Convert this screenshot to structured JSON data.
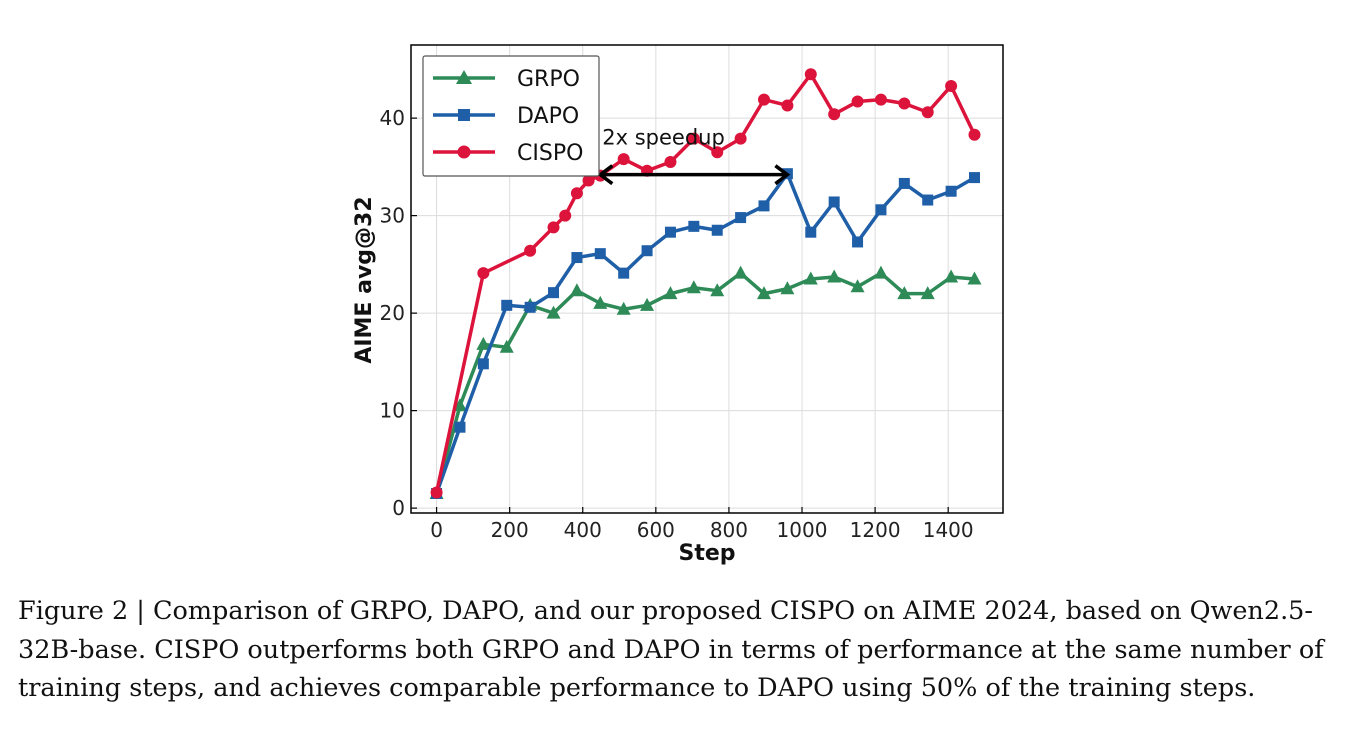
{
  "chart_data": {
    "type": "line",
    "xlabel": "Step",
    "ylabel": "AIME avg@32",
    "xlim": [
      -70,
      1550
    ],
    "ylim": [
      -0.5,
      47.5
    ],
    "xticks": [
      0,
      200,
      400,
      600,
      800,
      1000,
      1200,
      1400
    ],
    "yticks": [
      0,
      10,
      20,
      30,
      40
    ],
    "grid": true,
    "legend_position": "top-left",
    "series": [
      {
        "name": "GRPO",
        "color": "#2e8b57",
        "marker": "triangle",
        "x": [
          0,
          64,
          128,
          192,
          256,
          320,
          384,
          448,
          512,
          576,
          640,
          704,
          768,
          832,
          896,
          960,
          1024,
          1088,
          1152,
          1216,
          1280,
          1344,
          1408,
          1472
        ],
        "y": [
          1.5,
          10.5,
          16.8,
          16.5,
          20.8,
          20.0,
          22.3,
          21.0,
          20.4,
          20.8,
          22.0,
          22.6,
          22.3,
          24.1,
          22.0,
          22.5,
          23.5,
          23.7,
          22.7,
          24.1,
          22.0,
          22.0,
          23.7,
          23.5
        ]
      },
      {
        "name": "DAPO",
        "color": "#1f5fa8",
        "marker": "square",
        "x": [
          0,
          64,
          128,
          192,
          256,
          320,
          384,
          448,
          512,
          576,
          640,
          704,
          768,
          832,
          896,
          960,
          1024,
          1088,
          1152,
          1216,
          1280,
          1344,
          1408,
          1472
        ],
        "y": [
          1.5,
          8.3,
          14.8,
          20.8,
          20.6,
          22.1,
          25.7,
          26.1,
          24.1,
          26.4,
          28.3,
          28.9,
          28.5,
          29.8,
          31.0,
          34.3,
          28.3,
          31.4,
          27.3,
          30.6,
          33.3,
          31.6,
          32.5,
          33.9
        ]
      },
      {
        "name": "CISPO",
        "color": "#dc143c",
        "marker": "circle",
        "x": [
          0,
          128,
          256,
          320,
          352,
          384,
          416,
          448,
          512,
          576,
          640,
          704,
          768,
          832,
          896,
          960,
          1024,
          1088,
          1152,
          1216,
          1280,
          1344,
          1408,
          1472
        ],
        "y": [
          1.6,
          24.1,
          26.4,
          28.8,
          30.0,
          32.3,
          33.6,
          34.1,
          35.8,
          34.6,
          35.5,
          37.9,
          36.5,
          37.9,
          41.9,
          41.3,
          44.5,
          40.4,
          41.7,
          41.9,
          41.5,
          40.6,
          43.3,
          38.3
        ]
      }
    ],
    "annotation": {
      "text": "2x speedup",
      "arrow_from": [
        448,
        34.2
      ],
      "arrow_to": [
        960,
        34.2
      ]
    }
  },
  "caption": "Figure 2 | Comparison of GRPO, DAPO, and our proposed CISPO on AIME 2024, based on Qwen2.5-32B-base. CISPO outperforms both GRPO and DAPO in terms of performance at the same number of training steps, and achieves comparable performance to DAPO using 50% of the training steps."
}
